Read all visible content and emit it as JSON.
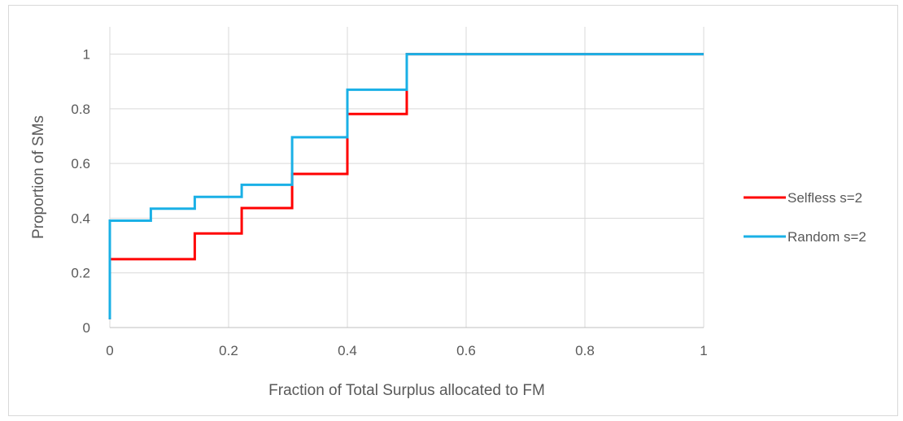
{
  "chart_data": {
    "type": "line",
    "step": true,
    "title": "",
    "xlabel": "Fraction of Total Surplus allocated to FM",
    "ylabel": "Proportion of SMs",
    "xlim": [
      0,
      1
    ],
    "ylim": [
      0,
      1.1
    ],
    "xticks": [
      "0",
      "0.2",
      "0.4",
      "0.6",
      "0.8",
      "1"
    ],
    "yticks": [
      "0",
      "0.2",
      "0.4",
      "0.6",
      "0.8",
      "1"
    ],
    "grid": true,
    "legend_position": "right",
    "series": [
      {
        "name": "Selfless s=2",
        "color": "#ff0000",
        "x": [
          0,
          0,
          0.143,
          0.143,
          0.222,
          0.222,
          0.307,
          0.307,
          0.4,
          0.4,
          0.5,
          0.5,
          1
        ],
        "y": [
          0.03,
          0.25,
          0.25,
          0.344,
          0.344,
          0.437,
          0.437,
          0.562,
          0.562,
          0.781,
          0.781,
          1,
          1
        ]
      },
      {
        "name": "Random s=2",
        "color": "#1ab0e6",
        "x": [
          0,
          0,
          0.069,
          0.069,
          0.143,
          0.143,
          0.222,
          0.222,
          0.307,
          0.307,
          0.4,
          0.4,
          0.5,
          0.5,
          1
        ],
        "y": [
          0.03,
          0.391,
          0.391,
          0.435,
          0.435,
          0.478,
          0.478,
          0.522,
          0.522,
          0.696,
          0.696,
          0.87,
          0.87,
          1,
          1
        ]
      }
    ]
  }
}
